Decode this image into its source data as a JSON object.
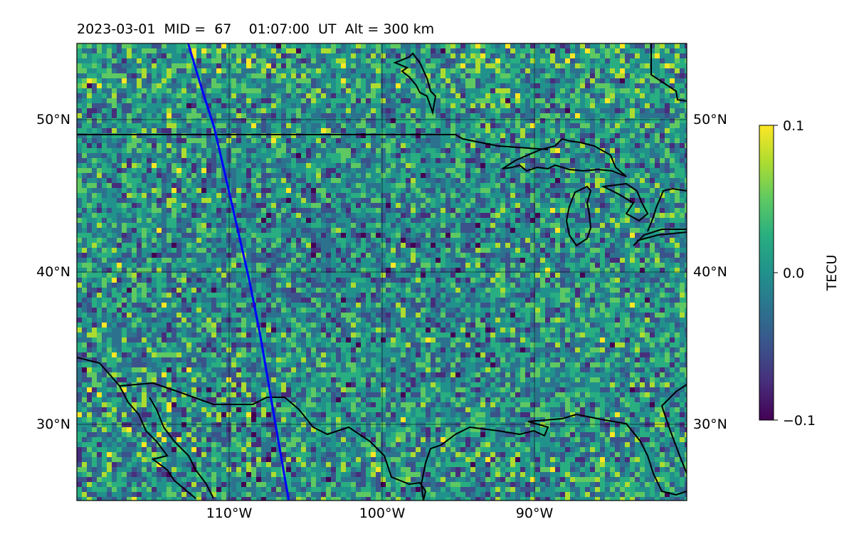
{
  "title": {
    "date": "2023-03-01",
    "mid_label": "MID =",
    "mid_value": "67",
    "time": "01:07:00",
    "time_zone": "UT",
    "alt_label": "Alt = 300 km"
  },
  "map": {
    "lon_range": [
      -120,
      -80
    ],
    "lat_range": [
      25,
      55
    ],
    "lon_ticks": [
      {
        "value": -110,
        "label": "110°W"
      },
      {
        "value": -100,
        "label": "100°W"
      },
      {
        "value": -90,
        "label": "90°W"
      }
    ],
    "lat_ticks": [
      {
        "value": 50,
        "label": "50°N"
      },
      {
        "value": 40,
        "label": "40°N"
      },
      {
        "value": 30,
        "label": "30°N"
      }
    ],
    "grid": true,
    "field_colormap": "viridis",
    "track_color": "#0000ff",
    "track": [
      {
        "lon": -112.7,
        "lat": 55.0
      },
      {
        "lon": -111.8,
        "lat": 52.0
      },
      {
        "lon": -111.0,
        "lat": 49.5
      },
      {
        "lon": -110.3,
        "lat": 46.5
      },
      {
        "lon": -109.5,
        "lat": 43.0
      },
      {
        "lon": -108.7,
        "lat": 39.5
      },
      {
        "lon": -108.0,
        "lat": 36.0
      },
      {
        "lon": -107.4,
        "lat": 32.5
      },
      {
        "lon": -106.8,
        "lat": 29.0
      },
      {
        "lon": -106.1,
        "lat": 25.0
      }
    ]
  },
  "colorbar": {
    "label": "TECU",
    "min": -0.1,
    "max": 0.1,
    "ticks": [
      {
        "value": 0.1,
        "label": "0.1"
      },
      {
        "value": 0.0,
        "label": "0.0"
      },
      {
        "value": -0.1,
        "label": "−0.1"
      }
    ]
  }
}
